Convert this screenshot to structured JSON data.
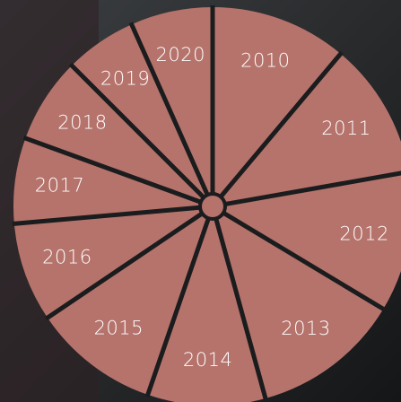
{
  "menu": {
    "items": [
      "2010",
      "2011",
      "2012",
      "2013",
      "2014",
      "2015",
      "2016",
      "2017",
      "2018",
      "2019",
      "2020"
    ]
  }
}
